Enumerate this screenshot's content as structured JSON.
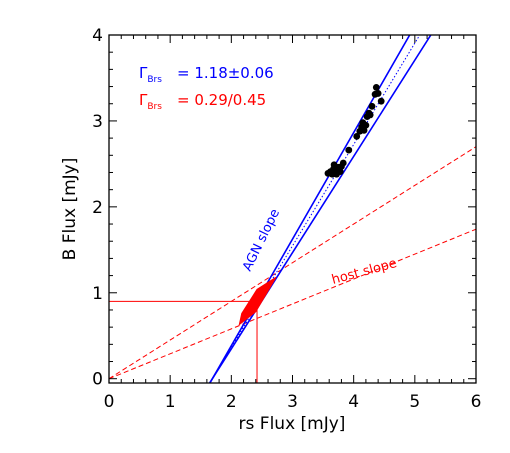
{
  "chart_data": {
    "type": "scatter",
    "xlabel": "rs Flux [mJy]",
    "ylabel": "B Flux [mJy]",
    "xlim": [
      0,
      6
    ],
    "ylim": [
      -0.05,
      4
    ],
    "xticks": [
      "0",
      "1",
      "2",
      "3",
      "4",
      "5",
      "6"
    ],
    "yticks": [
      "0",
      "1",
      "2",
      "3",
      "4"
    ],
    "grid": false,
    "legend": [
      {
        "symbol": "Γ",
        "sub": "Brs",
        "text": "= 1.18±0.06",
        "color": "#0000ff"
      },
      {
        "symbol": "Γ",
        "sub": "Brs",
        "text": "= 0.29/0.45",
        "color": "#ff0000"
      }
    ],
    "annotations": [
      {
        "text": "AGN slope",
        "color": "#0000ff"
      },
      {
        "text": "host slope",
        "color": "#ff0000"
      }
    ],
    "points": [
      [
        3.58,
        2.39
      ],
      [
        3.62,
        2.41
      ],
      [
        3.65,
        2.38
      ],
      [
        3.67,
        2.44
      ],
      [
        3.68,
        2.49
      ],
      [
        3.7,
        2.4
      ],
      [
        3.72,
        2.38
      ],
      [
        3.74,
        2.42
      ],
      [
        3.75,
        2.46
      ],
      [
        3.78,
        2.41
      ],
      [
        3.8,
        2.47
      ],
      [
        3.83,
        2.51
      ],
      [
        3.92,
        2.66
      ],
      [
        4.05,
        2.82
      ],
      [
        4.1,
        2.88
      ],
      [
        4.13,
        2.93
      ],
      [
        4.15,
        2.98
      ],
      [
        4.17,
        2.89
      ],
      [
        4.2,
        2.95
      ],
      [
        4.22,
        3.05
      ],
      [
        4.25,
        3.09
      ],
      [
        4.27,
        3.07
      ],
      [
        4.3,
        3.17
      ],
      [
        4.35,
        3.31
      ],
      [
        4.37,
        3.39
      ],
      [
        4.4,
        3.32
      ],
      [
        4.45,
        3.23
      ]
    ],
    "agn_slope": {
      "mean": 1.18,
      "err": 0.06,
      "x_zero": 1.69
    },
    "host_slopes": [
      0.45,
      0.29
    ],
    "host_galaxy": {
      "x": 2.42,
      "y": 0.9
    },
    "host_region": [
      [
        2.13,
        0.63
      ],
      [
        2.4,
        0.78
      ],
      [
        2.73,
        1.18
      ],
      [
        2.42,
        1.04
      ],
      [
        2.17,
        0.76
      ]
    ]
  }
}
